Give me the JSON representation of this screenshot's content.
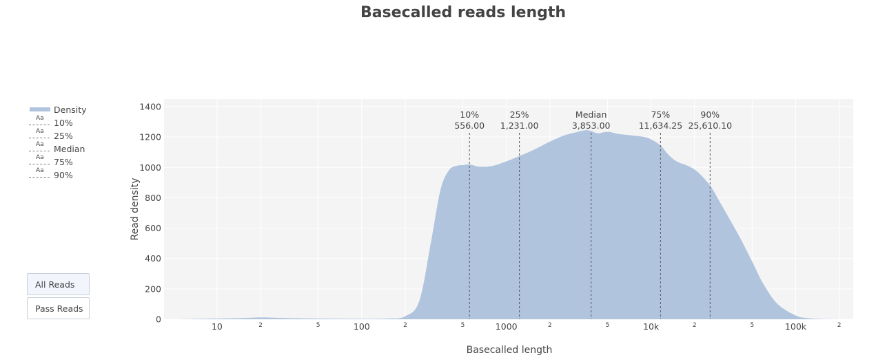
{
  "chart_data": {
    "type": "area",
    "title": "Basecalled reads length",
    "xlabel": "Basecalled length",
    "ylabel": "Read density",
    "x_scale": "log",
    "xlim": [
      4.3,
      250000
    ],
    "ylim": [
      0,
      1450
    ],
    "grid": true,
    "legend_placement": "left",
    "fill_color": "#b0c4de",
    "plot_background": "#f4f4f4",
    "y_ticks": [
      0,
      200,
      400,
      600,
      800,
      1000,
      1200,
      1400
    ],
    "y_tick_labels": [
      "0",
      "200",
      "400",
      "600",
      "800",
      "1000",
      "1200",
      "1400"
    ],
    "x_major_ticks": [
      10,
      100,
      1000,
      10000,
      100000
    ],
    "x_major_labels": [
      "10",
      "100",
      "1000",
      "10k",
      "100k"
    ],
    "x_minor_ticks": [
      20,
      50,
      200,
      500,
      2000,
      5000,
      20000,
      50000,
      200000
    ],
    "x_minor_labels": [
      "2",
      "5",
      "2",
      "5",
      "2",
      "5",
      "2",
      "5",
      "2"
    ],
    "series": [
      {
        "name": "Density",
        "x": [
          5,
          10,
          15,
          20,
          30,
          50,
          100,
          150,
          200,
          250,
          300,
          350,
          400,
          450,
          500,
          556,
          650,
          800,
          1000,
          1231,
          1500,
          2000,
          2500,
          3000,
          3500,
          3853,
          4300,
          5000,
          6000,
          7500,
          9000,
          10000,
          11634,
          13000,
          15000,
          18000,
          21000,
          25610,
          30000,
          40000,
          50000,
          60000,
          75000,
          100000,
          120000,
          150000,
          200000
        ],
        "y": [
          0,
          5,
          8,
          12,
          8,
          5,
          3,
          5,
          20,
          120,
          500,
          850,
          980,
          1010,
          1015,
          1020,
          1005,
          1010,
          1040,
          1075,
          1110,
          1170,
          1210,
          1230,
          1245,
          1240,
          1225,
          1235,
          1220,
          1210,
          1200,
          1185,
          1145,
          1090,
          1040,
          1010,
          970,
          880,
          770,
          560,
          380,
          230,
          100,
          25,
          8,
          2,
          0
        ]
      }
    ],
    "percentiles": [
      {
        "label": "10%",
        "value_label": "556.00",
        "x": 556
      },
      {
        "label": "25%",
        "value_label": "1,231.00",
        "x": 1231
      },
      {
        "label": "Median",
        "value_label": "3,853.00",
        "x": 3853
      },
      {
        "label": "75%",
        "value_label": "11,634.25",
        "x": 11634.25
      },
      {
        "label": "90%",
        "value_label": "25,610.10",
        "x": 25610.1
      }
    ]
  },
  "legend": {
    "items": [
      "Density",
      "10%",
      "25%",
      "Median",
      "75%",
      "90%"
    ],
    "swatch_text": "Aa"
  },
  "buttons": {
    "all_reads": "All Reads",
    "pass_reads": "Pass Reads"
  }
}
